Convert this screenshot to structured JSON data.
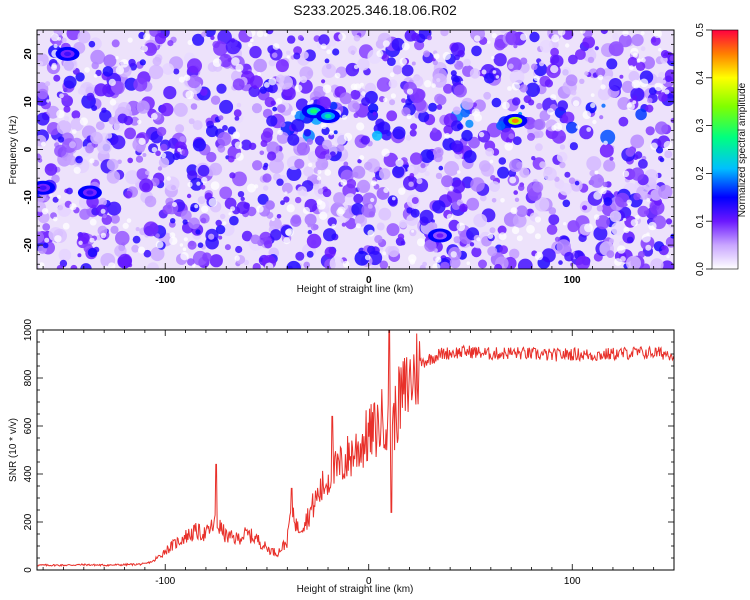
{
  "title": "S233.2025.346.18.06.R02",
  "chart_data": [
    {
      "type": "heatmap",
      "xlabel": "Height of straight line (km)",
      "ylabel": "Frequency (Hz)",
      "xlim": [
        -163,
        150
      ],
      "ylim": [
        -25,
        25
      ],
      "xticks": [
        -100,
        0,
        100
      ],
      "yticks": [
        -20,
        -10,
        0,
        10,
        20
      ],
      "colorbar": {
        "label": "Normalized spectral amplitude",
        "range": [
          0,
          0.5
        ],
        "ticks": [
          "0.0",
          "0.1",
          "0.2",
          "0.3",
          "0.4",
          "0.5"
        ]
      },
      "features": [
        {
          "x": -27,
          "y": 8,
          "value": 0.28
        },
        {
          "x": -20,
          "y": 7,
          "value": 0.25
        },
        {
          "x": 72,
          "y": 6,
          "value": 0.45
        },
        {
          "x": -148,
          "y": 20,
          "value": 0.12
        },
        {
          "x": -137,
          "y": -9,
          "value": 0.12
        },
        {
          "x": -160,
          "y": -8,
          "value": 0.12
        },
        {
          "x": 35,
          "y": -18,
          "value": 0.1
        }
      ]
    },
    {
      "type": "line",
      "xlabel": "Height of straight line (km)",
      "ylabel": "SNR (10 * v/v)",
      "xlim": [
        -163,
        150
      ],
      "ylim": [
        0,
        1000
      ],
      "xticks": [
        -100,
        0,
        100
      ],
      "yticks": [
        0,
        200,
        400,
        600,
        800,
        1000
      ],
      "series": [
        {
          "color": "#e8302a",
          "x": [
            -163,
            -150,
            -140,
            -130,
            -120,
            -110,
            -105,
            -100,
            -95,
            -90,
            -85,
            -80,
            -75,
            -70,
            -65,
            -60,
            -55,
            -50,
            -45,
            -40,
            -38,
            -35,
            -30,
            -25,
            -20,
            -15,
            -10,
            -5,
            0,
            5,
            8,
            10,
            12,
            15,
            20,
            25,
            30,
            35,
            40,
            50,
            60,
            70,
            80,
            90,
            100,
            110,
            120,
            130,
            140,
            150
          ],
          "y": [
            20,
            20,
            22,
            20,
            22,
            25,
            40,
            80,
            110,
            140,
            160,
            150,
            200,
            140,
            130,
            150,
            130,
            90,
            70,
            120,
            280,
            170,
            220,
            310,
            380,
            420,
            470,
            510,
            560,
            600,
            650,
            560,
            610,
            700,
            780,
            860,
            880,
            900,
            905,
            910,
            900,
            905,
            900,
            895,
            900,
            895,
            900,
            905,
            905,
            900
          ],
          "spikes": [
            {
              "x": -75,
              "y": 440
            },
            {
              "x": -38,
              "y": 340
            },
            {
              "x": -18,
              "y": 640
            },
            {
              "x": 10,
              "y": 1000
            },
            {
              "x": 11,
              "y": 240
            }
          ]
        }
      ]
    }
  ]
}
